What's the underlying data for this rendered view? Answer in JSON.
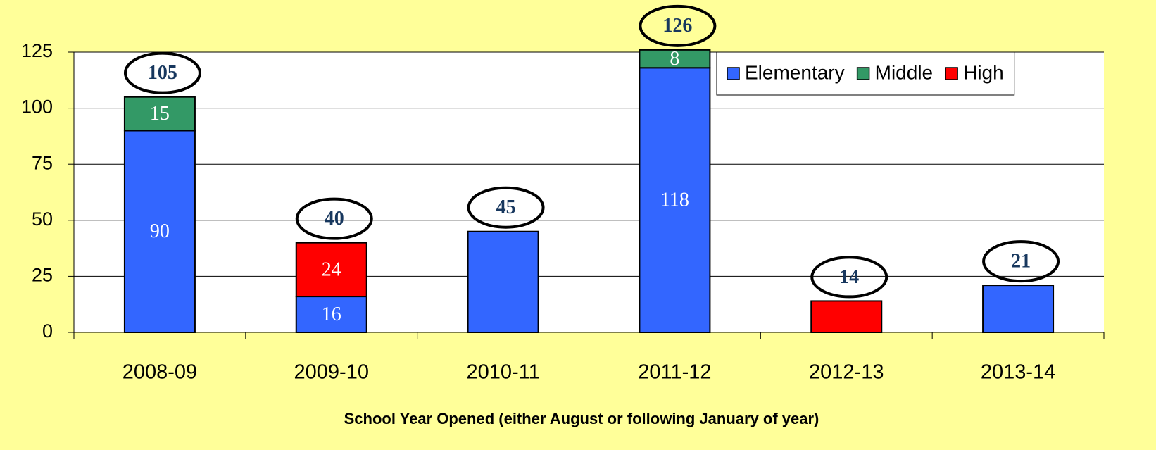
{
  "chart_data": {
    "type": "stacked_bar",
    "x_label": "School Year Opened (either August or following January of year)",
    "categories": [
      "2008-09",
      "2009-10",
      "2010-11",
      "2011-12",
      "2012-13",
      "2013-14"
    ],
    "series": [
      {
        "name": "Elementary",
        "color": "#3366ff",
        "values": [
          90,
          16,
          45,
          118,
          null,
          21
        ]
      },
      {
        "name": "Middle",
        "color": "#339966",
        "values": [
          15,
          null,
          null,
          8,
          null,
          null
        ]
      },
      {
        "name": "High",
        "color": "#ff0000",
        "values": [
          null,
          24,
          null,
          null,
          14,
          null
        ]
      }
    ],
    "totals": [
      105,
      40,
      45,
      126,
      14,
      21
    ],
    "ylim": [
      0,
      125
    ],
    "yticks": [
      0,
      25,
      50,
      75,
      100,
      125
    ],
    "grid": true,
    "legend": "top-right"
  }
}
